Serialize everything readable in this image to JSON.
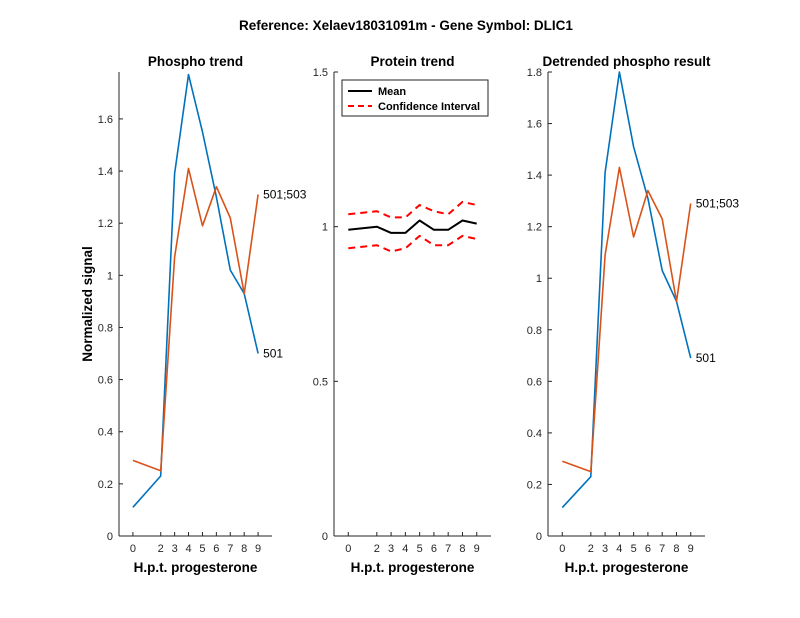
{
  "figure": {
    "suptitle": "Reference:  Xelaev18031091m - Gene Symbol:  DLIC1"
  },
  "chart_data": [
    {
      "type": "line",
      "title": "Phospho trend",
      "xlabel": "H.p.t. progesterone",
      "ylabel": "Normalized signal",
      "x": [
        0,
        2,
        3,
        4,
        5,
        6,
        7,
        8,
        9
      ],
      "ylim": [
        0,
        1.78
      ],
      "yticks": [
        0,
        0.2,
        0.4,
        0.6,
        0.8,
        1,
        1.2,
        1.4,
        1.6
      ],
      "series": [
        {
          "color": "#0072BD",
          "values": [
            0.11,
            0.23,
            1.39,
            1.77,
            1.55,
            1.3,
            1.02,
            0.93,
            0.7
          ],
          "end_label": "501"
        },
        {
          "color": "#D95319",
          "values": [
            0.29,
            0.25,
            1.07,
            1.41,
            1.19,
            1.34,
            1.22,
            0.93,
            1.31
          ],
          "end_label": "501;503"
        }
      ]
    },
    {
      "type": "line",
      "title": "Protein trend",
      "xlabel": "H.p.t. progesterone",
      "ylabel": "",
      "x": [
        0,
        2,
        3,
        4,
        5,
        6,
        7,
        8,
        9
      ],
      "ylim": [
        0,
        1.5
      ],
      "yticks": [
        0,
        0.5,
        1,
        1.5
      ],
      "legend": {
        "position": "top-left",
        "items": [
          {
            "label": "Mean",
            "color": "#000000",
            "dashed": false
          },
          {
            "label": "Confidence Interval",
            "color": "#FF0000",
            "dashed": true
          }
        ]
      },
      "series": [
        {
          "name": "Mean",
          "color": "#000000",
          "dashed": false,
          "values": [
            0.99,
            1.0,
            0.98,
            0.98,
            1.02,
            0.99,
            0.99,
            1.02,
            1.01
          ]
        },
        {
          "name": "Confidence Interval",
          "color": "#FF0000",
          "dashed": true,
          "values": [
            1.04,
            1.05,
            1.03,
            1.03,
            1.07,
            1.05,
            1.04,
            1.08,
            1.07
          ]
        },
        {
          "name": "Confidence Interval",
          "color": "#FF0000",
          "dashed": true,
          "values": [
            0.93,
            0.94,
            0.92,
            0.93,
            0.97,
            0.94,
            0.94,
            0.97,
            0.96
          ]
        }
      ]
    },
    {
      "type": "line",
      "title": "Detrended phospho result",
      "xlabel": "H.p.t. progesterone",
      "ylabel": "",
      "x": [
        0,
        2,
        3,
        4,
        5,
        6,
        7,
        8,
        9
      ],
      "ylim": [
        0,
        1.8
      ],
      "yticks": [
        0,
        0.2,
        0.4,
        0.6,
        0.8,
        1,
        1.2,
        1.4,
        1.6,
        1.8
      ],
      "series": [
        {
          "color": "#0072BD",
          "values": [
            0.11,
            0.23,
            1.41,
            1.8,
            1.51,
            1.31,
            1.03,
            0.91,
            0.69
          ],
          "end_label": "501"
        },
        {
          "color": "#D95319",
          "values": [
            0.29,
            0.25,
            1.09,
            1.43,
            1.16,
            1.34,
            1.23,
            0.91,
            1.29
          ],
          "end_label": "501;503"
        }
      ]
    }
  ]
}
